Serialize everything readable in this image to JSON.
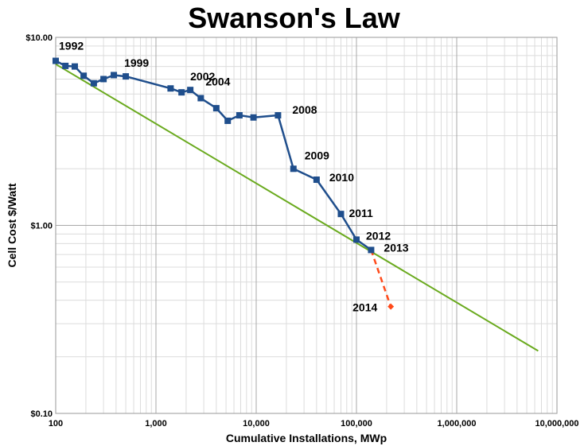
{
  "chart_data": {
    "type": "line",
    "title": "Swanson's Law",
    "xlabel": "Cumulative Installations, MWp",
    "ylabel": "Cell Cost $/Watt",
    "x_scale": "log",
    "y_scale": "log",
    "xlim": [
      100,
      10000000
    ],
    "ylim": [
      0.1,
      10
    ],
    "x_ticks": [
      {
        "value": 100,
        "label": "100"
      },
      {
        "value": 1000,
        "label": "1,000"
      },
      {
        "value": 10000,
        "label": "10,000"
      },
      {
        "value": 100000,
        "label": "100,000"
      },
      {
        "value": 1000000,
        "label": "1,000,000"
      },
      {
        "value": 10000000,
        "label": "10,000,000"
      }
    ],
    "y_ticks": [
      {
        "value": 10,
        "label": "$10.00"
      },
      {
        "value": 1,
        "label": "$1.00"
      },
      {
        "value": 0.1,
        "label": "$0.10"
      }
    ],
    "grid": true,
    "series": [
      {
        "color": "#1f4e8c",
        "style": "solid",
        "marker": "square",
        "x": [
          100,
          125,
          155,
          190,
          240,
          300,
          380,
          500,
          1400,
          1800,
          2200,
          2800,
          4000,
          5200,
          6800,
          9400,
          16500,
          23500,
          40000,
          70000,
          100000,
          140000
        ],
        "y": [
          7.5,
          7.05,
          7.0,
          6.25,
          5.7,
          6.0,
          6.3,
          6.2,
          5.35,
          5.1,
          5.25,
          4.75,
          4.2,
          3.6,
          3.85,
          3.75,
          3.85,
          2.0,
          1.75,
          1.15,
          0.84,
          0.74
        ]
      },
      {
        "color": "#ff4a1a",
        "style": "dashed",
        "marker": "diamond",
        "x": [
          140000,
          220000
        ],
        "y": [
          0.74,
          0.37
        ]
      },
      {
        "color": "#6aaa1e",
        "style": "solid",
        "marker": "none",
        "x": [
          100,
          6500000
        ],
        "y": [
          7.2,
          0.215
        ]
      }
    ],
    "annotations": [
      {
        "text": "1992",
        "x": 100,
        "y": 7.5
      },
      {
        "text": "1999",
        "x": 500,
        "y": 6.2
      },
      {
        "text": "2002",
        "x": 2200,
        "y": 5.25
      },
      {
        "text": "2004",
        "x": 2800,
        "y": 4.75
      },
      {
        "text": "2008",
        "x": 16500,
        "y": 3.85
      },
      {
        "text": "2009",
        "x": 23500,
        "y": 2.0
      },
      {
        "text": "2010",
        "x": 40000,
        "y": 1.75
      },
      {
        "text": "2011",
        "x": 70000,
        "y": 1.15
      },
      {
        "text": "2012",
        "x": 100000,
        "y": 0.84
      },
      {
        "text": "2013",
        "x": 140000,
        "y": 0.74
      },
      {
        "text": "2014",
        "x": 220000,
        "y": 0.37
      }
    ]
  }
}
